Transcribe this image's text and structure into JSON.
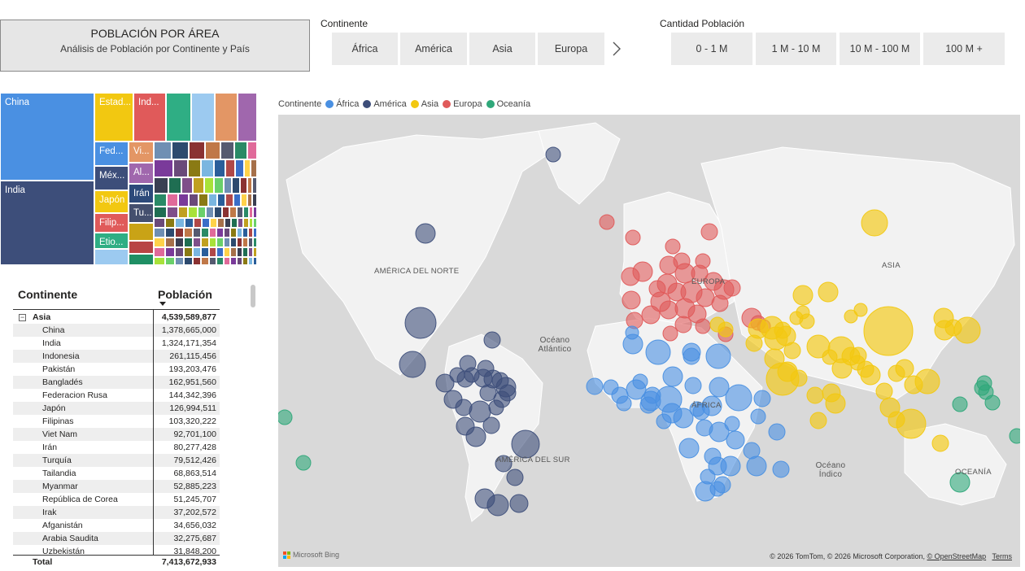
{
  "header": {
    "title": "POBLACIÓN POR ÁREA",
    "subtitle": "Análisis de Población por Continente y País"
  },
  "slicer_continent": {
    "label": "Continente",
    "options": [
      "África",
      "América",
      "Asia",
      "Europa"
    ]
  },
  "slicer_population": {
    "label": "Cantidad Población",
    "options": [
      "0 - 1 M",
      "1 M - 10 M",
      "10 M - 100 M",
      "100 M +"
    ]
  },
  "treemap": {
    "labels": {
      "china": "China",
      "india": "India",
      "usa": "Estad...",
      "indonesia": "Ind...",
      "russia": "Fed...",
      "mexico": "Méx...",
      "japan": "Japón",
      "philippines": "Filip...",
      "ethiopia": "Etio...",
      "vietnam": "Vi...",
      "germany": "Al...",
      "iran": "Irán",
      "turkey": "Tu..."
    }
  },
  "matrix": {
    "col_continent": "Continente",
    "col_population": "Población",
    "group": {
      "name": "Asia",
      "value": "4,539,589,877",
      "expander": "−"
    },
    "rows": [
      {
        "name": "China",
        "value": "1,378,665,000"
      },
      {
        "name": "India",
        "value": "1,324,171,354"
      },
      {
        "name": "Indonesia",
        "value": "261,115,456"
      },
      {
        "name": "Pakistán",
        "value": "193,203,476"
      },
      {
        "name": "Bangladés",
        "value": "162,951,560"
      },
      {
        "name": "Federacion Rusa",
        "value": "144,342,396"
      },
      {
        "name": "Japón",
        "value": "126,994,511"
      },
      {
        "name": "Filipinas",
        "value": "103,320,222"
      },
      {
        "name": "Viet Nam",
        "value": "92,701,100"
      },
      {
        "name": "Irán",
        "value": "80,277,428"
      },
      {
        "name": "Turquía",
        "value": "79,512,426"
      },
      {
        "name": "Tailandia",
        "value": "68,863,514"
      },
      {
        "name": "Myanmar",
        "value": "52,885,223"
      },
      {
        "name": "República de Corea",
        "value": "51,245,707"
      },
      {
        "name": "Irak",
        "value": "37,202,572"
      },
      {
        "name": "Afganistán",
        "value": "34,656,032"
      },
      {
        "name": "Arabia Saudita",
        "value": "32,275,687"
      },
      {
        "name": "Uzbekistán",
        "value": "31,848,200"
      }
    ],
    "total": {
      "name": "Total",
      "value": "7,413,672,933"
    }
  },
  "map": {
    "legend_title": "Continente",
    "legend": [
      {
        "name": "África",
        "color": "#4a90e2"
      },
      {
        "name": "América",
        "color": "#3d4e7a"
      },
      {
        "name": "Asia",
        "color": "#f2c811"
      },
      {
        "name": "Europa",
        "color": "#e05a5a"
      },
      {
        "name": "Oceanía",
        "color": "#2fa87a"
      }
    ],
    "labels": {
      "north_america": "AMÉRICA DEL NORTE",
      "south_america": "AMÉRICA DEL SUR",
      "europe": "EUROPA",
      "africa": "ÁFRICA",
      "asia": "ASIA",
      "oceania": "OCEANÍA",
      "atlantic": "Océano\nAtlántico",
      "indian": "Océano\nÍndico"
    },
    "attribution_brand": "Microsoft Bing",
    "copyright": "© 2026 TomTom, © 2026 Microsoft Corporation,",
    "osm_link": "© OpenStreetMap",
    "terms_link": "Terms"
  }
}
